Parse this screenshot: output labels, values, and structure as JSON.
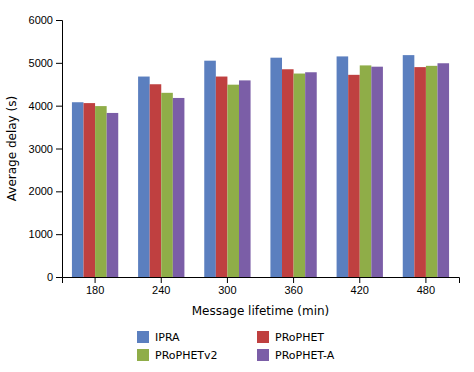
{
  "chart_data": {
    "type": "bar",
    "categories": [
      "180",
      "240",
      "300",
      "360",
      "420",
      "480"
    ],
    "series": [
      {
        "name": "IPRA",
        "color": "#5b7fbf",
        "values": [
          4080,
          4680,
          5050,
          5120,
          5150,
          5180
        ]
      },
      {
        "name": "PRoPHET",
        "color": "#bf4040",
        "values": [
          4060,
          4500,
          4680,
          4850,
          4720,
          4900
        ]
      },
      {
        "name": "PRoPHETv2",
        "color": "#8fad48",
        "values": [
          3990,
          4300,
          4490,
          4750,
          4940,
          4930
        ]
      },
      {
        "name": "PRoPHET-A",
        "color": "#7b5ea7",
        "values": [
          3830,
          4180,
          4590,
          4780,
          4910,
          4990
        ]
      }
    ],
    "xlabel": "Message lifetime (min)",
    "ylabel": "Average delay (s)",
    "ylim": [
      0,
      6000
    ],
    "yticks": [
      0,
      1000,
      2000,
      3000,
      4000,
      5000,
      6000
    ],
    "grid": false,
    "legend": "bottom"
  }
}
